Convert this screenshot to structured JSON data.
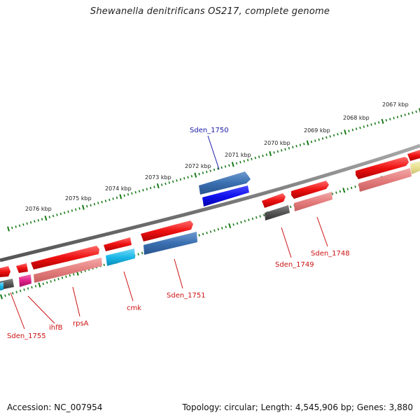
{
  "title": "Shewanella denitrificans OS217, complete genome",
  "footer": {
    "accession": "Accession: NC_007954",
    "stats": "Topology: circular; Length: 4,545,906 bp; Genes: 3,880"
  },
  "ticks": [
    {
      "label": "2067 kbp"
    },
    {
      "label": "2068 kbp"
    },
    {
      "label": "2069 kbp"
    },
    {
      "label": "2070 kbp"
    },
    {
      "label": "2071 kbp"
    },
    {
      "label": "2072 kbp"
    },
    {
      "label": "2073 kbp"
    },
    {
      "label": "2074 kbp"
    },
    {
      "label": "2075 kbp"
    },
    {
      "label": "2076 kbp"
    }
  ],
  "gene_labels": [
    {
      "name": "Sden_1750",
      "color": "#1a1aa8"
    },
    {
      "name": "Sden_1748",
      "color": "#cc1111"
    },
    {
      "name": "Sden_1749",
      "color": "#cc1111"
    },
    {
      "name": "Sden_1751",
      "color": "#cc1111"
    },
    {
      "name": "cmk",
      "color": "#cc1111"
    },
    {
      "name": "rpsA",
      "color": "#cc1111"
    },
    {
      "name": "ihfB",
      "color": "#cc1111"
    },
    {
      "name": "Sden_1755",
      "color": "#cc1111"
    }
  ],
  "colors": {
    "backbone": "#777777",
    "tick": "#1a7a1a",
    "cds_forward": "#ee1111",
    "gene_pink": "#e88080",
    "gene_blue": "#3a6fb0",
    "gene_highlight": "#1111ee",
    "gene_cyan": "#1ab8e8",
    "gene_gray": "#555555",
    "gene_magenta": "#e0208a",
    "gene_yellow": "#e8e090"
  }
}
